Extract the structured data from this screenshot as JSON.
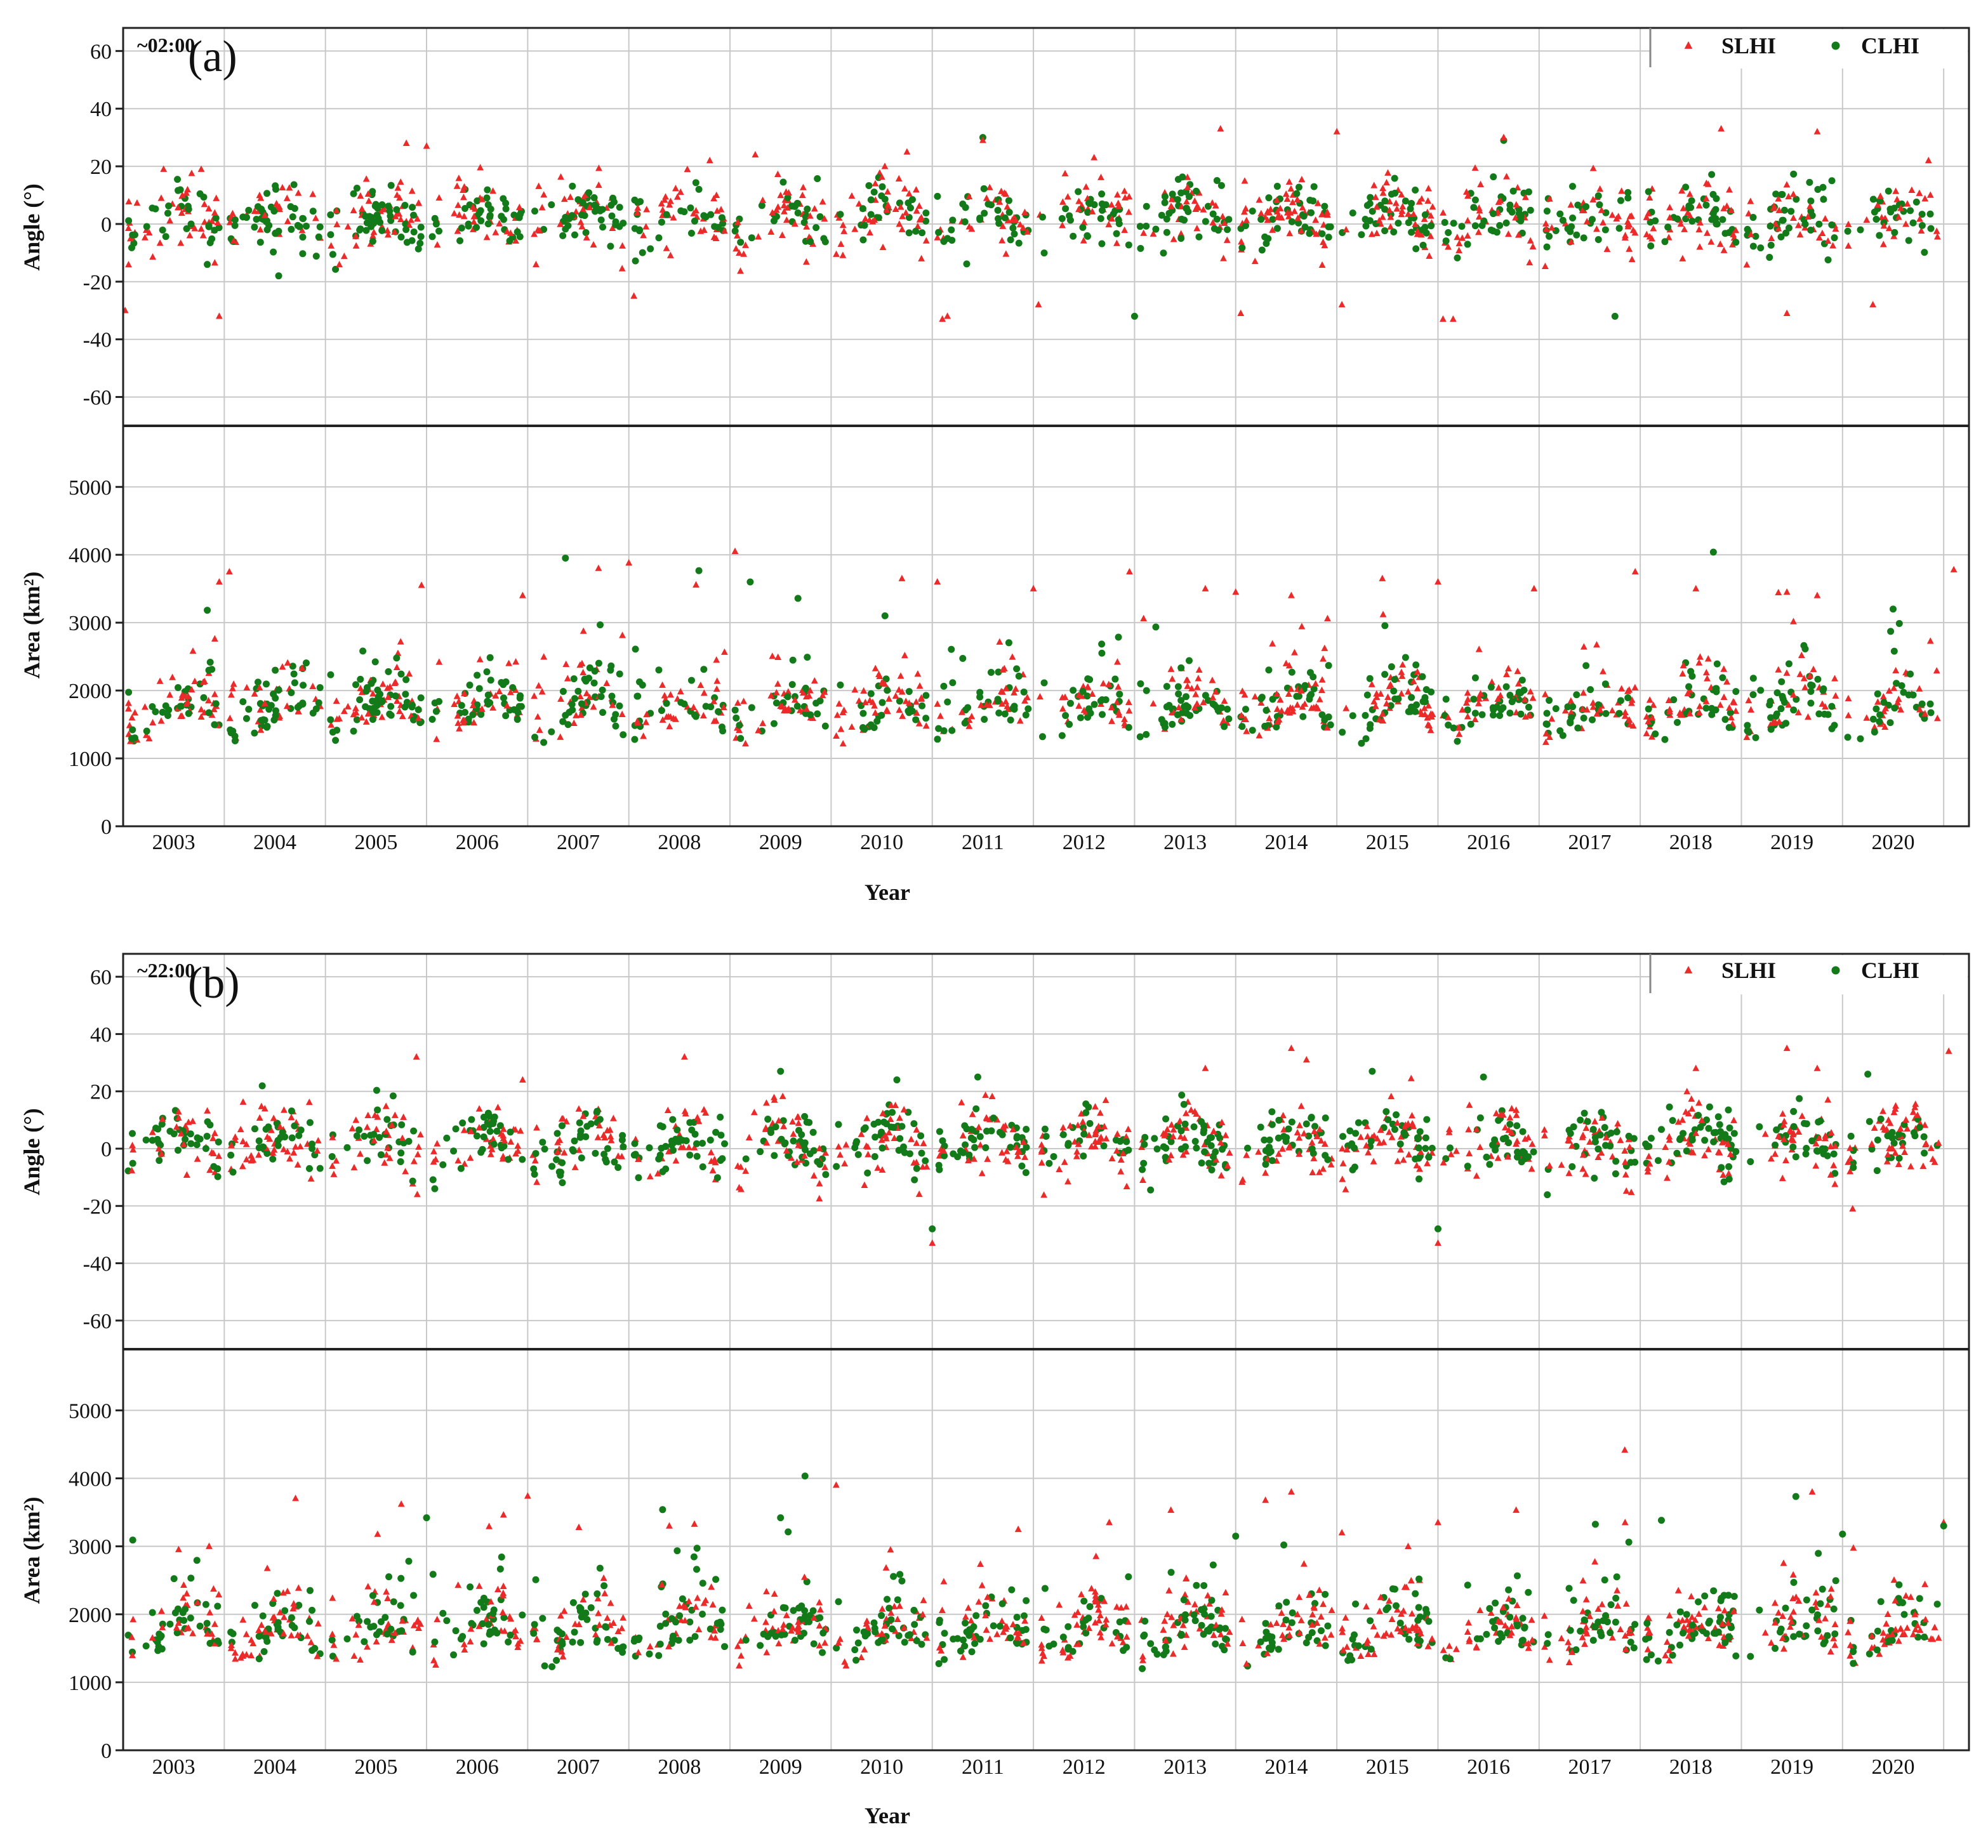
{
  "chart_data": {
    "type": "scatter",
    "colors": {
      "SLHI": "#ec2a2a",
      "CLHI": "#127a18"
    },
    "legend": {
      "position": "top-right",
      "entries": [
        "SLHI",
        "CLHI"
      ]
    },
    "years": [
      "2003",
      "2004",
      "2005",
      "2006",
      "2007",
      "2008",
      "2009",
      "2010",
      "2011",
      "2012",
      "2013",
      "2014",
      "2015",
      "2016",
      "2017",
      "2018",
      "2019",
      "2020"
    ],
    "x_range": [
      2002.5,
      2020.75
    ],
    "xlabel": "Year",
    "panels": [
      {
        "id": "a",
        "label": "(a)",
        "time_label": "~02:00",
        "angle_axis": {
          "ylabel": "Angle (°)",
          "ylim": [
            -70,
            68
          ],
          "ticks": [
            -60,
            -40,
            -20,
            0,
            20,
            40,
            60
          ]
        },
        "area_axis": {
          "ylabel": "Area (km²)",
          "ylim": [
            0,
            5900
          ],
          "ticks": [
            0,
            1000,
            2000,
            3000,
            4000,
            5000
          ]
        },
        "angle_outliers": [
          {
            "series": "SLHI",
            "x": 2002.52,
            "y": -30
          },
          {
            "series": "SLHI",
            "x": 2002.9,
            "y": 19
          },
          {
            "series": "SLHI",
            "x": 2003.45,
            "y": -32
          },
          {
            "series": "SLHI",
            "x": 2005.3,
            "y": 28
          },
          {
            "series": "SLHI",
            "x": 2005.5,
            "y": 27
          },
          {
            "series": "SLHI",
            "x": 2007.55,
            "y": -25
          },
          {
            "series": "SLHI",
            "x": 2008.3,
            "y": 22
          },
          {
            "series": "SLHI",
            "x": 2008.75,
            "y": 24
          },
          {
            "series": "SLHI",
            "x": 2010.25,
            "y": 25
          },
          {
            "series": "SLHI",
            "x": 2010.6,
            "y": -33
          },
          {
            "series": "SLHI",
            "x": 2010.65,
            "y": -32
          },
          {
            "series": "CLHI",
            "x": 2011.0,
            "y": 30
          },
          {
            "series": "SLHI",
            "x": 2011.0,
            "y": 29
          },
          {
            "series": "SLHI",
            "x": 2011.55,
            "y": -28
          },
          {
            "series": "SLHI",
            "x": 2012.1,
            "y": 23
          },
          {
            "series": "CLHI",
            "x": 2012.5,
            "y": -32
          },
          {
            "series": "SLHI",
            "x": 2013.35,
            "y": 33
          },
          {
            "series": "SLHI",
            "x": 2013.55,
            "y": -31
          },
          {
            "series": "SLHI",
            "x": 2014.5,
            "y": 32
          },
          {
            "series": "SLHI",
            "x": 2014.55,
            "y": -28
          },
          {
            "series": "SLHI",
            "x": 2015.55,
            "y": -33
          },
          {
            "series": "SLHI",
            "x": 2015.65,
            "y": -33
          },
          {
            "series": "CLHI",
            "x": 2016.15,
            "y": 29
          },
          {
            "series": "SLHI",
            "x": 2016.15,
            "y": 30
          },
          {
            "series": "CLHI",
            "x": 2017.25,
            "y": -32
          },
          {
            "series": "SLHI",
            "x": 2018.3,
            "y": 33
          },
          {
            "series": "SLHI",
            "x": 2018.95,
            "y": -31
          },
          {
            "series": "SLHI",
            "x": 2019.25,
            "y": 32
          },
          {
            "series": "SLHI",
            "x": 2019.8,
            "y": -28
          },
          {
            "series": "SLHI",
            "x": 2020.35,
            "y": 22
          }
        ],
        "area_outliers": [
          {
            "series": "SLHI",
            "x": 2003.55,
            "y": 3750
          },
          {
            "series": "SLHI",
            "x": 2003.45,
            "y": 3600
          },
          {
            "series": "SLHI",
            "x": 2005.45,
            "y": 3550
          },
          {
            "series": "SLHI",
            "x": 2006.45,
            "y": 3400
          },
          {
            "series": "SLHI",
            "x": 2007.2,
            "y": 3800
          },
          {
            "series": "SLHI",
            "x": 2007.5,
            "y": 3880
          },
          {
            "series": "SLHI",
            "x": 2008.55,
            "y": 4050
          },
          {
            "series": "CLHI",
            "x": 2008.7,
            "y": 3600
          },
          {
            "series": "SLHI",
            "x": 2010.2,
            "y": 3650
          },
          {
            "series": "SLHI",
            "x": 2010.55,
            "y": 3600
          },
          {
            "series": "SLHI",
            "x": 2011.5,
            "y": 3500
          },
          {
            "series": "SLHI",
            "x": 2012.45,
            "y": 3750
          },
          {
            "series": "SLHI",
            "x": 2013.2,
            "y": 3500
          },
          {
            "series": "SLHI",
            "x": 2013.5,
            "y": 3450
          },
          {
            "series": "SLHI",
            "x": 2014.05,
            "y": 3400
          },
          {
            "series": "SLHI",
            "x": 2014.95,
            "y": 3650
          },
          {
            "series": "SLHI",
            "x": 2015.5,
            "y": 3600
          },
          {
            "series": "SLHI",
            "x": 2016.45,
            "y": 3500
          },
          {
            "series": "SLHI",
            "x": 2017.45,
            "y": 3750
          },
          {
            "series": "SLHI",
            "x": 2018.05,
            "y": 3500
          },
          {
            "series": "SLHI",
            "x": 2018.95,
            "y": 3450
          },
          {
            "series": "SLHI",
            "x": 2019.25,
            "y": 3400
          },
          {
            "series": "SLHI",
            "x": 2020.6,
            "y": 3780
          },
          {
            "series": "CLHI",
            "x": 2020.0,
            "y": 3200
          }
        ],
        "seed": 7
      },
      {
        "id": "b",
        "label": "(b)",
        "time_label": "~22:00",
        "angle_axis": {
          "ylabel": "Angle (°)",
          "ylim": [
            -70,
            68
          ],
          "ticks": [
            -60,
            -40,
            -20,
            0,
            20,
            40,
            60
          ]
        },
        "area_axis": {
          "ylabel": "Area (km²)",
          "ylim": [
            0,
            5900
          ],
          "ticks": [
            0,
            1000,
            2000,
            3000,
            4000,
            5000
          ]
        },
        "angle_outliers": [
          {
            "series": "SLHI",
            "x": 2005.4,
            "y": 32
          },
          {
            "series": "SLHI",
            "x": 2006.45,
            "y": 24
          },
          {
            "series": "SLHI",
            "x": 2008.05,
            "y": 32
          },
          {
            "series": "CLHI",
            "x": 2009.0,
            "y": 27
          },
          {
            "series": "CLHI",
            "x": 2010.15,
            "y": 24
          },
          {
            "series": "SLHI",
            "x": 2010.5,
            "y": -33
          },
          {
            "series": "CLHI",
            "x": 2010.5,
            "y": -28
          },
          {
            "series": "CLHI",
            "x": 2010.95,
            "y": 25
          },
          {
            "series": "SLHI",
            "x": 2013.2,
            "y": 28
          },
          {
            "series": "SLHI",
            "x": 2014.05,
            "y": 35
          },
          {
            "series": "SLHI",
            "x": 2014.2,
            "y": 31
          },
          {
            "series": "CLHI",
            "x": 2014.85,
            "y": 27
          },
          {
            "series": "SLHI",
            "x": 2015.5,
            "y": -33
          },
          {
            "series": "CLHI",
            "x": 2015.5,
            "y": -28
          },
          {
            "series": "CLHI",
            "x": 2015.95,
            "y": 25
          },
          {
            "series": "SLHI",
            "x": 2018.05,
            "y": 28
          },
          {
            "series": "SLHI",
            "x": 2018.95,
            "y": 35
          },
          {
            "series": "SLHI",
            "x": 2019.25,
            "y": 28
          },
          {
            "series": "CLHI",
            "x": 2019.75,
            "y": 26
          },
          {
            "series": "SLHI",
            "x": 2020.55,
            "y": 34
          },
          {
            "series": "SLHI",
            "x": 2019.6,
            "y": -21
          }
        ],
        "area_outliers": [
          {
            "series": "SLHI",
            "x": 2005.25,
            "y": 3620
          },
          {
            "series": "CLHI",
            "x": 2005.5,
            "y": 3420
          },
          {
            "series": "SLHI",
            "x": 2006.5,
            "y": 3740
          },
          {
            "series": "SLHI",
            "x": 2007.9,
            "y": 3300
          },
          {
            "series": "CLHI",
            "x": 2009.0,
            "y": 3420
          },
          {
            "series": "SLHI",
            "x": 2009.55,
            "y": 3900
          },
          {
            "series": "SLHI",
            "x": 2011.35,
            "y": 3250
          },
          {
            "series": "SLHI",
            "x": 2012.25,
            "y": 3350
          },
          {
            "series": "CLHI",
            "x": 2013.5,
            "y": 3150
          },
          {
            "series": "SLHI",
            "x": 2014.05,
            "y": 3800
          },
          {
            "series": "SLHI",
            "x": 2014.55,
            "y": 3200
          },
          {
            "series": "SLHI",
            "x": 2015.5,
            "y": 3350
          },
          {
            "series": "SLHI",
            "x": 2017.35,
            "y": 3350
          },
          {
            "series": "SLHI",
            "x": 2019.2,
            "y": 3800
          },
          {
            "series": "CLHI",
            "x": 2019.5,
            "y": 3180
          },
          {
            "series": "SLHI",
            "x": 2020.5,
            "y": 3350
          },
          {
            "series": "CLHI",
            "x": 2020.5,
            "y": 3300
          },
          {
            "series": "SLHI",
            "x": 2003.35,
            "y": 3000
          }
        ],
        "seed": 19
      }
    ]
  }
}
